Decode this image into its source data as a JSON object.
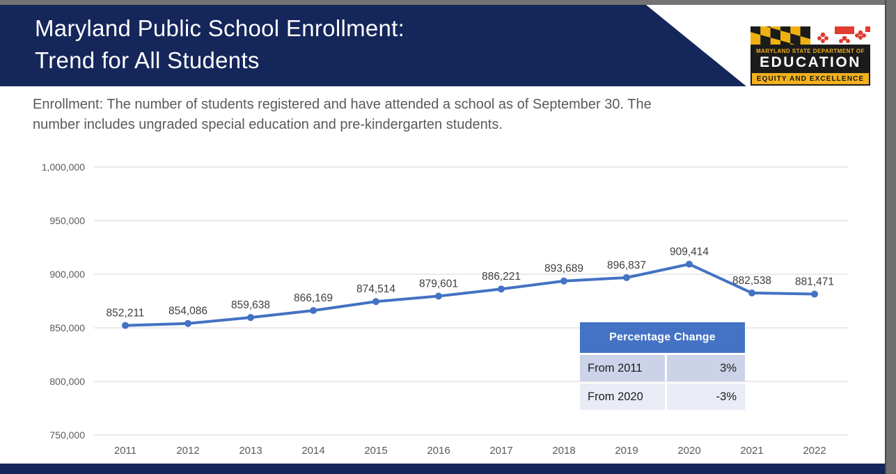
{
  "header": {
    "title_line1": "Maryland Public School Enrollment:",
    "title_line2": "Trend for All Students"
  },
  "logo": {
    "dept_line": "MARYLAND STATE DEPARTMENT OF",
    "name": "EDUCATION",
    "tagline": "EQUITY AND EXCELLENCE"
  },
  "subtitle": {
    "line1": "Enrollment:  The number of students registered and have attended a school as of September 30. The",
    "line2": "number includes ungraded special education and pre-kindergarten students."
  },
  "chart_data": {
    "type": "line",
    "title": "",
    "xlabel": "",
    "ylabel": "",
    "categories": [
      "2011",
      "2012",
      "2013",
      "2014",
      "2015",
      "2016",
      "2017",
      "2018",
      "2019",
      "2020",
      "2021",
      "2022"
    ],
    "values": [
      852211,
      854086,
      859638,
      866169,
      874514,
      879601,
      886221,
      893689,
      896837,
      909414,
      882538,
      881471
    ],
    "data_labels": [
      "852,211",
      "854,086",
      "859,638",
      "866,169",
      "874,514",
      "879,601",
      "886,221",
      "893,689",
      "896,837",
      "909,414",
      "882,538",
      "881,471"
    ],
    "ylim": [
      750000,
      1000000
    ],
    "y_ticks": [
      750000,
      800000,
      850000,
      900000,
      950000,
      1000000
    ],
    "y_tick_labels": [
      "750,000",
      "800,000",
      "850,000",
      "900,000",
      "950,000",
      "1,000,000"
    ],
    "grid": true,
    "legend": "none"
  },
  "table": {
    "header": "Percentage Change",
    "rows": [
      {
        "label": "From 2011",
        "value": "3%"
      },
      {
        "label": "From 2020",
        "value": "-3%"
      }
    ]
  },
  "colors": {
    "navy": "#15265b",
    "line": "#4472c4",
    "grid": "#e3e3e3",
    "axis_text": "#595959",
    "data_label": "#3d3d3d",
    "table_header_bg": "#4472c4",
    "table_row1_bg": "#ccd3e8",
    "table_row2_bg": "#e9ebf5",
    "logo_gold": "#f2b01e",
    "logo_red": "#e03c31",
    "logo_black": "#1b1b1b"
  }
}
